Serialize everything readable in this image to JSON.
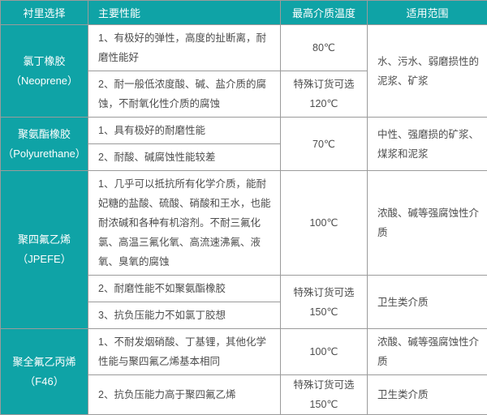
{
  "colors": {
    "accent_teal": "#0fa3a6",
    "border_gray": "#9b9b9b",
    "text_gray": "#4d4d4d"
  },
  "table": {
    "headers": [
      "衬里选择",
      "主要性能",
      "最高介质温度",
      "适用范围"
    ],
    "groups": [
      {
        "name": "氯丁橡胶",
        "code": "（Neoprene）",
        "range": "水、污水、弱磨损性的泥浆、矿浆",
        "rows": [
          {
            "perf": "1、有极好的弹性，高度的扯断离，耐磨性能好",
            "temp1": "80℃",
            "temp2": ""
          },
          {
            "perf": "2、耐一般低浓度酸、碱、盐介质的腐蚀，不耐氧化性介质的腐蚀",
            "temp1": "特殊订货可选",
            "temp2": "120℃"
          }
        ]
      },
      {
        "name": "聚氨酯橡胶",
        "code": "（Polyurethane）",
        "temp": "70℃",
        "range": "中性、强磨损的矿浆、煤浆和泥浆",
        "rows": [
          {
            "perf": "1、具有极好的耐磨性能"
          },
          {
            "perf": "2、耐酸、碱腐蚀性能较差"
          }
        ]
      },
      {
        "name": "聚四氟乙烯",
        "code": "（JPEFE）",
        "rows": [
          {
            "perf": "1、几乎可以抵抗所有化学介质，能耐妃糖的盐酸、硫酸、硝酸和王水，也能耐浓碱和各种有机溶剂。不耐三氟化氯、高温三氟化氧、高流速沸氟、液氧、臭氧的腐蚀",
            "temp1": "100℃",
            "temp2": "",
            "range": "浓酸、碱等强腐蚀性介质"
          },
          {
            "perf": "2、耐磨性能不如聚氨酯橡胶",
            "temp1": "特殊订货可选",
            "temp2": "150℃",
            "range": "卫生类介质"
          },
          {
            "perf": "3、抗负压能力不如氯丁胶想"
          }
        ]
      },
      {
        "name": "聚全氟乙丙烯",
        "code": "（F46）",
        "rows": [
          {
            "perf": "1、不耐发烟硝酸、丁基锂，其他化学性能与聚四氟乙烯基本相同",
            "temp1": "100℃",
            "temp2": "",
            "range": "浓酸、碱等强腐蚀性介质"
          },
          {
            "perf": "2、抗负压能力高于聚四氟乙烯",
            "temp1": "特殊订货可选",
            "temp2": "150℃",
            "range": "卫生类介质"
          }
        ]
      }
    ]
  }
}
